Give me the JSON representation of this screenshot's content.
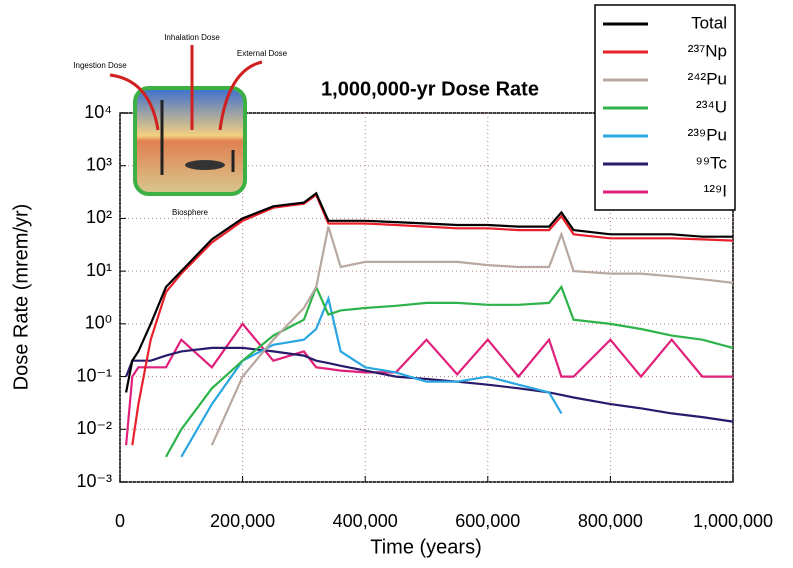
{
  "chart_data": {
    "type": "line",
    "title": "1,000,000-yr Dose Rate",
    "xlabel": "Time (years)",
    "ylabel": "Dose Rate (mrem/yr)",
    "annotations": [
      "Ingestion Dose",
      "Inhalation Dose",
      "External Dose",
      "Biosphere"
    ],
    "log_y": true,
    "grid": true,
    "legend": "upper right",
    "xlim": [
      0,
      1000000
    ],
    "xticks": [
      0,
      {
        "value": 200000,
        "label": "200,000"
      },
      {
        "value": 400000,
        "label": "400,000"
      },
      {
        "value": 600000,
        "label": "600,000"
      },
      {
        "value": 800000,
        "label": "800,000"
      },
      {
        "value": 1000000,
        "label": "1,000,000"
      }
    ],
    "ylim": [
      0.001,
      10000
    ],
    "yticks": [
      {
        "value": 0.001,
        "label": "10⁻³"
      },
      {
        "value": 0.01,
        "label": "10⁻²"
      },
      {
        "value": 0.1,
        "label": "10⁻¹"
      },
      {
        "value": 1,
        "label": "10⁰"
      },
      {
        "value": 10,
        "label": "10¹"
      },
      {
        "value": 100,
        "label": "10²"
      },
      {
        "value": 1000,
        "label": "10³"
      },
      {
        "value": 10000,
        "label": "10⁴"
      }
    ],
    "x": [
      10000,
      20000,
      30000,
      50000,
      75000,
      100000,
      150000,
      200000,
      250000,
      300000,
      320000,
      340000,
      360000,
      400000,
      450000,
      500000,
      550000,
      600000,
      650000,
      700000,
      720000,
      740000,
      800000,
      850000,
      900000,
      950000,
      1000000
    ],
    "series": [
      {
        "name": "Total",
        "color": "#000000",
        "values": [
          0.05,
          0.2,
          0.3,
          1,
          5,
          10,
          40,
          100,
          170,
          200,
          300,
          90,
          90,
          90,
          85,
          80,
          75,
          75,
          70,
          70,
          130,
          60,
          50,
          50,
          50,
          45,
          45
        ]
      },
      {
        "name": "²³⁷Np",
        "color": "#e8202a",
        "values": [
          null,
          0.005,
          0.03,
          0.5,
          4,
          9,
          35,
          90,
          160,
          190,
          280,
          80,
          80,
          80,
          75,
          70,
          65,
          65,
          60,
          60,
          110,
          50,
          42,
          42,
          42,
          40,
          38
        ]
      },
      {
        "name": "²⁴²Pu",
        "color": "#b8a8a0",
        "values": [
          null,
          null,
          null,
          null,
          null,
          null,
          0.005,
          0.1,
          0.5,
          2,
          5,
          70,
          12,
          15,
          15,
          15,
          15,
          13,
          12,
          12,
          50,
          10,
          9,
          9,
          8,
          7,
          6
        ]
      },
      {
        "name": "²³⁴U",
        "color": "#2db34a",
        "values": [
          null,
          null,
          null,
          null,
          0.003,
          0.01,
          0.06,
          0.2,
          0.6,
          1.2,
          5,
          1.5,
          1.8,
          2,
          2.2,
          2.5,
          2.5,
          2.3,
          2.3,
          2.5,
          5,
          1.2,
          1,
          0.8,
          0.6,
          0.5,
          0.35
        ]
      },
      {
        "name": "²³⁹Pu",
        "color": "#2aa6e0",
        "values": [
          null,
          null,
          null,
          null,
          null,
          0.003,
          0.03,
          0.2,
          0.4,
          0.5,
          0.8,
          3,
          0.3,
          0.15,
          0.12,
          0.08,
          0.08,
          0.1,
          0.07,
          0.05,
          0.02,
          null,
          null,
          null,
          null,
          null,
          null
        ]
      },
      {
        "name": "⁹⁹Tc",
        "color": "#2a1a6b",
        "values": [
          0.1,
          0.2,
          0.2,
          0.2,
          0.25,
          0.3,
          0.35,
          0.35,
          0.3,
          0.25,
          0.2,
          0.18,
          0.16,
          0.13,
          0.1,
          0.09,
          0.08,
          0.07,
          0.06,
          0.05,
          0.045,
          0.04,
          0.03,
          0.025,
          0.02,
          0.017,
          0.014
        ]
      },
      {
        "name": "¹²⁹I",
        "color": "#e0207a",
        "values": [
          0.005,
          0.1,
          0.15,
          0.15,
          0.15,
          0.5,
          0.15,
          1,
          0.2,
          0.3,
          0.15,
          0.14,
          0.13,
          0.12,
          0.12,
          0.5,
          0.11,
          0.5,
          0.1,
          0.5,
          0.1,
          0.1,
          0.5,
          0.1,
          0.5,
          0.1,
          0.1
        ]
      }
    ]
  }
}
